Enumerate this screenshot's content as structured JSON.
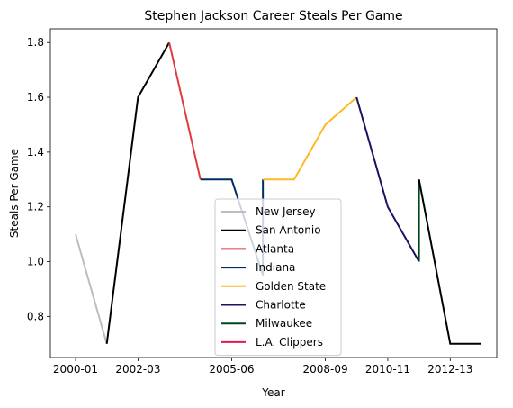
{
  "chart_data": {
    "type": "line",
    "title": "Stephen Jackson Career Steals Per Game",
    "xlabel": "Year",
    "ylabel": "Steals Per Game",
    "x_ticks": [
      "2000-01",
      "2002-03",
      "2005-06",
      "2008-09",
      "2010-11",
      "2012-13"
    ],
    "y_ticks": [
      "0.8",
      "1.0",
      "1.2",
      "1.4",
      "1.6",
      "1.8"
    ],
    "ylim": [
      0.65,
      1.85
    ],
    "legend_position": "lower-center",
    "series": [
      {
        "name": "New Jersey",
        "color": "#bdbdbd",
        "points": [
          [
            "2000-01",
            1.1
          ],
          [
            "2001-02",
            0.7
          ]
        ]
      },
      {
        "name": "San Antonio",
        "color": "#000000",
        "points": [
          [
            "2001-02",
            0.7
          ],
          [
            "2002-03",
            1.6
          ],
          [
            "2003-04",
            1.8
          ]
        ]
      },
      {
        "name": "Atlanta",
        "color": "#e03a3e",
        "points": [
          [
            "2003-04",
            1.8
          ],
          [
            "2004-05",
            1.3
          ]
        ]
      },
      {
        "name": "Indiana",
        "color": "#002d62",
        "points": [
          [
            "2004-05",
            1.3
          ],
          [
            "2005-06",
            1.3
          ],
          [
            "2006-07",
            0.95
          ],
          [
            "2006-07",
            1.3
          ]
        ]
      },
      {
        "name": "Golden State",
        "color": "#fdb927",
        "points": [
          [
            "2006-07",
            1.3
          ],
          [
            "2007-08",
            1.3
          ],
          [
            "2008-09",
            1.5
          ],
          [
            "2009-10",
            1.6
          ]
        ]
      },
      {
        "name": "Charlotte",
        "color": "#1d1160",
        "points": [
          [
            "2009-10",
            1.6
          ],
          [
            "2010-11",
            1.2
          ],
          [
            "2011-12",
            1.0
          ]
        ]
      },
      {
        "name": "Milwaukee",
        "color": "#00471b",
        "points": [
          [
            "2011-12",
            1.0
          ],
          [
            "2011-12",
            1.3
          ]
        ]
      },
      {
        "name": "L.A. Clippers",
        "color": "#e2194e",
        "points": []
      },
      {
        "color": "#000000",
        "points": [
          [
            "2011-12",
            1.3
          ],
          [
            "2012-13",
            0.7
          ],
          [
            "2013-14",
            0.7
          ]
        ]
      }
    ]
  }
}
